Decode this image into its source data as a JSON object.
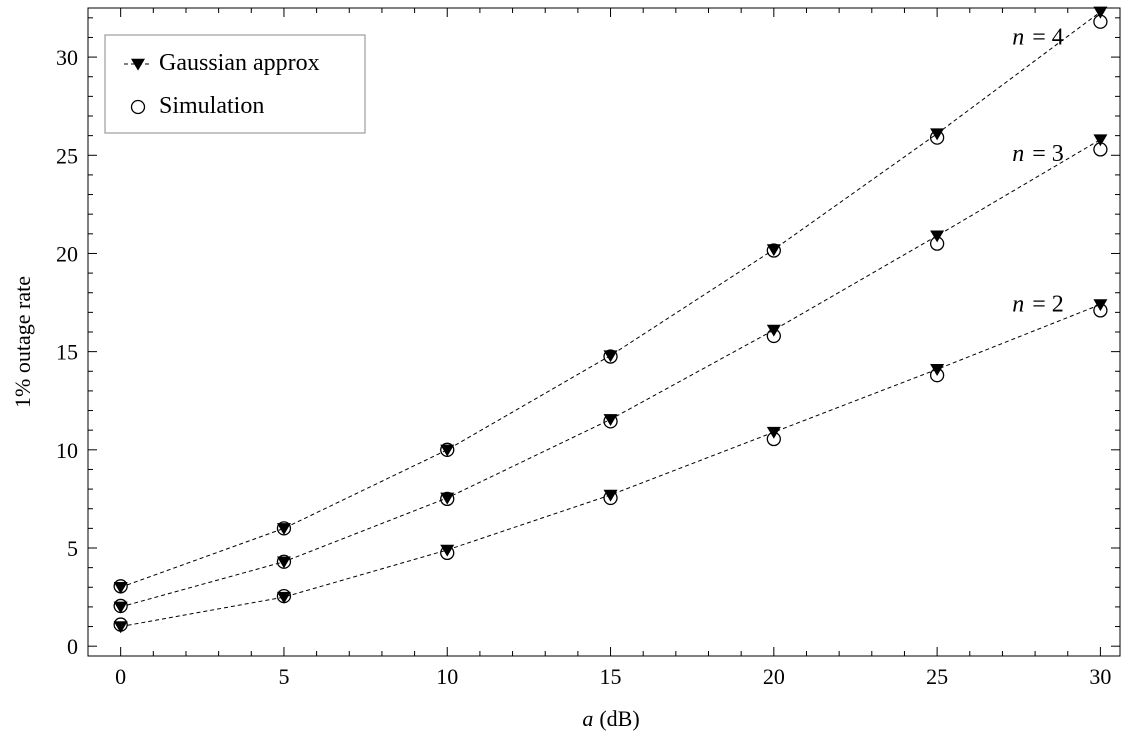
{
  "chart_data": {
    "type": "line",
    "title": "",
    "xlabel_var": "a",
    "xlabel_unit": "(dB)",
    "ylabel": "1% outage rate",
    "xlim": [
      -1,
      30.6
    ],
    "ylim": [
      -0.5,
      32.5
    ],
    "x_ticks": [
      0,
      5,
      10,
      15,
      20,
      25,
      30
    ],
    "y_ticks": [
      0,
      5,
      10,
      15,
      20,
      25,
      30
    ],
    "x": [
      0,
      5,
      10,
      15,
      20,
      25,
      30
    ],
    "grid": false,
    "legend_position": "top-left",
    "legend": [
      {
        "label": "Gaussian approx",
        "marker": "filled-down-triangle",
        "line": "dashed"
      },
      {
        "label": "Simulation",
        "marker": "open-circle",
        "line": "none"
      }
    ],
    "series": [
      {
        "n_var": "n",
        "n_eq": "= 2",
        "gaussian": [
          1.0,
          2.5,
          4.9,
          7.7,
          10.9,
          14.1,
          17.4
        ],
        "simulation": [
          1.1,
          2.55,
          4.75,
          7.55,
          10.55,
          13.8,
          17.1
        ]
      },
      {
        "n_var": "n",
        "n_eq": "= 3",
        "gaussian": [
          2.0,
          4.3,
          7.55,
          11.55,
          16.1,
          20.9,
          25.8
        ],
        "simulation": [
          2.05,
          4.3,
          7.5,
          11.45,
          15.8,
          20.5,
          25.3
        ]
      },
      {
        "n_var": "n",
        "n_eq": "= 4",
        "gaussian": [
          3.0,
          6.0,
          10.0,
          14.8,
          20.2,
          26.1,
          32.3
        ],
        "simulation": [
          3.05,
          6.0,
          10.0,
          14.75,
          20.15,
          25.9,
          31.8
        ]
      }
    ],
    "colors": {
      "line": "#000000",
      "marker": "#000000",
      "axis": "#000000",
      "legend_border": "#888888"
    }
  }
}
